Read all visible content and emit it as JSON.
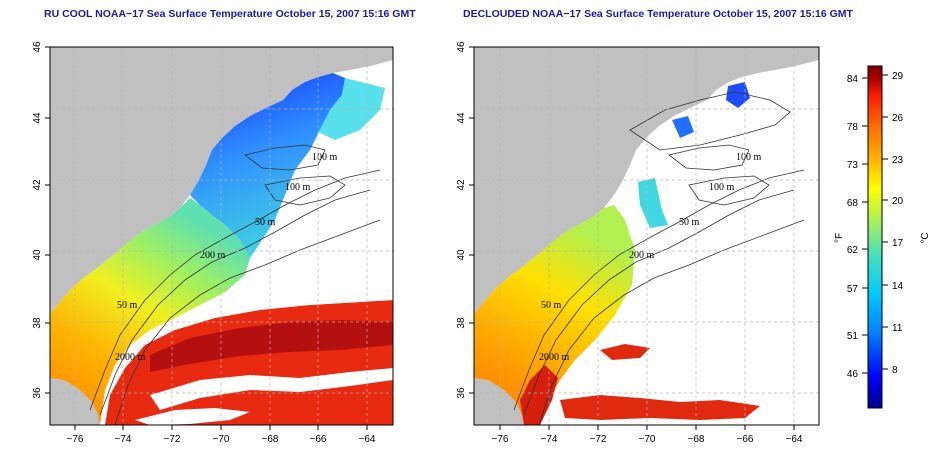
{
  "panels": [
    {
      "title": "RU COOL NOAA−17 Sea Surface Temperature October 15, 2007 15:16 GMT",
      "isobaths": [
        "100 m",
        "100 m",
        "50 m",
        "200 m",
        "50 m",
        "2000 m"
      ]
    },
    {
      "title": "DECLOUDED NOAA−17 Sea Surface Temperature October 15, 2007 15:16 GMT",
      "isobaths": [
        "100 m",
        "100 m",
        "50 m",
        "200 m",
        "50 m",
        "2000 m"
      ]
    }
  ],
  "axes": {
    "lat_ticks": [
      "46",
      "44",
      "42",
      "40",
      "38",
      "36"
    ],
    "lon_ticks": [
      "−76",
      "−74",
      "−72",
      "−70",
      "−68",
      "−66",
      "−64"
    ]
  },
  "colorbar": {
    "fahrenheit_ticks": [
      "84",
      "78",
      "73",
      "68",
      "62",
      "57",
      "51",
      "46"
    ],
    "celsius_ticks": [
      "29",
      "26",
      "23",
      "20",
      "17",
      "14",
      "11",
      "8"
    ],
    "label_f": "°F",
    "label_c": "°C",
    "colors": [
      "#00008f",
      "#0000ff",
      "#0080ff",
      "#00c8ff",
      "#40e0c0",
      "#a0f060",
      "#ffff00",
      "#ffb000",
      "#ff7000",
      "#ff2000",
      "#b00000",
      "#800000"
    ]
  },
  "colors": {
    "land": "#c0c0c0",
    "title": "#1a1aa6",
    "grid": "#b4b4b4"
  }
}
